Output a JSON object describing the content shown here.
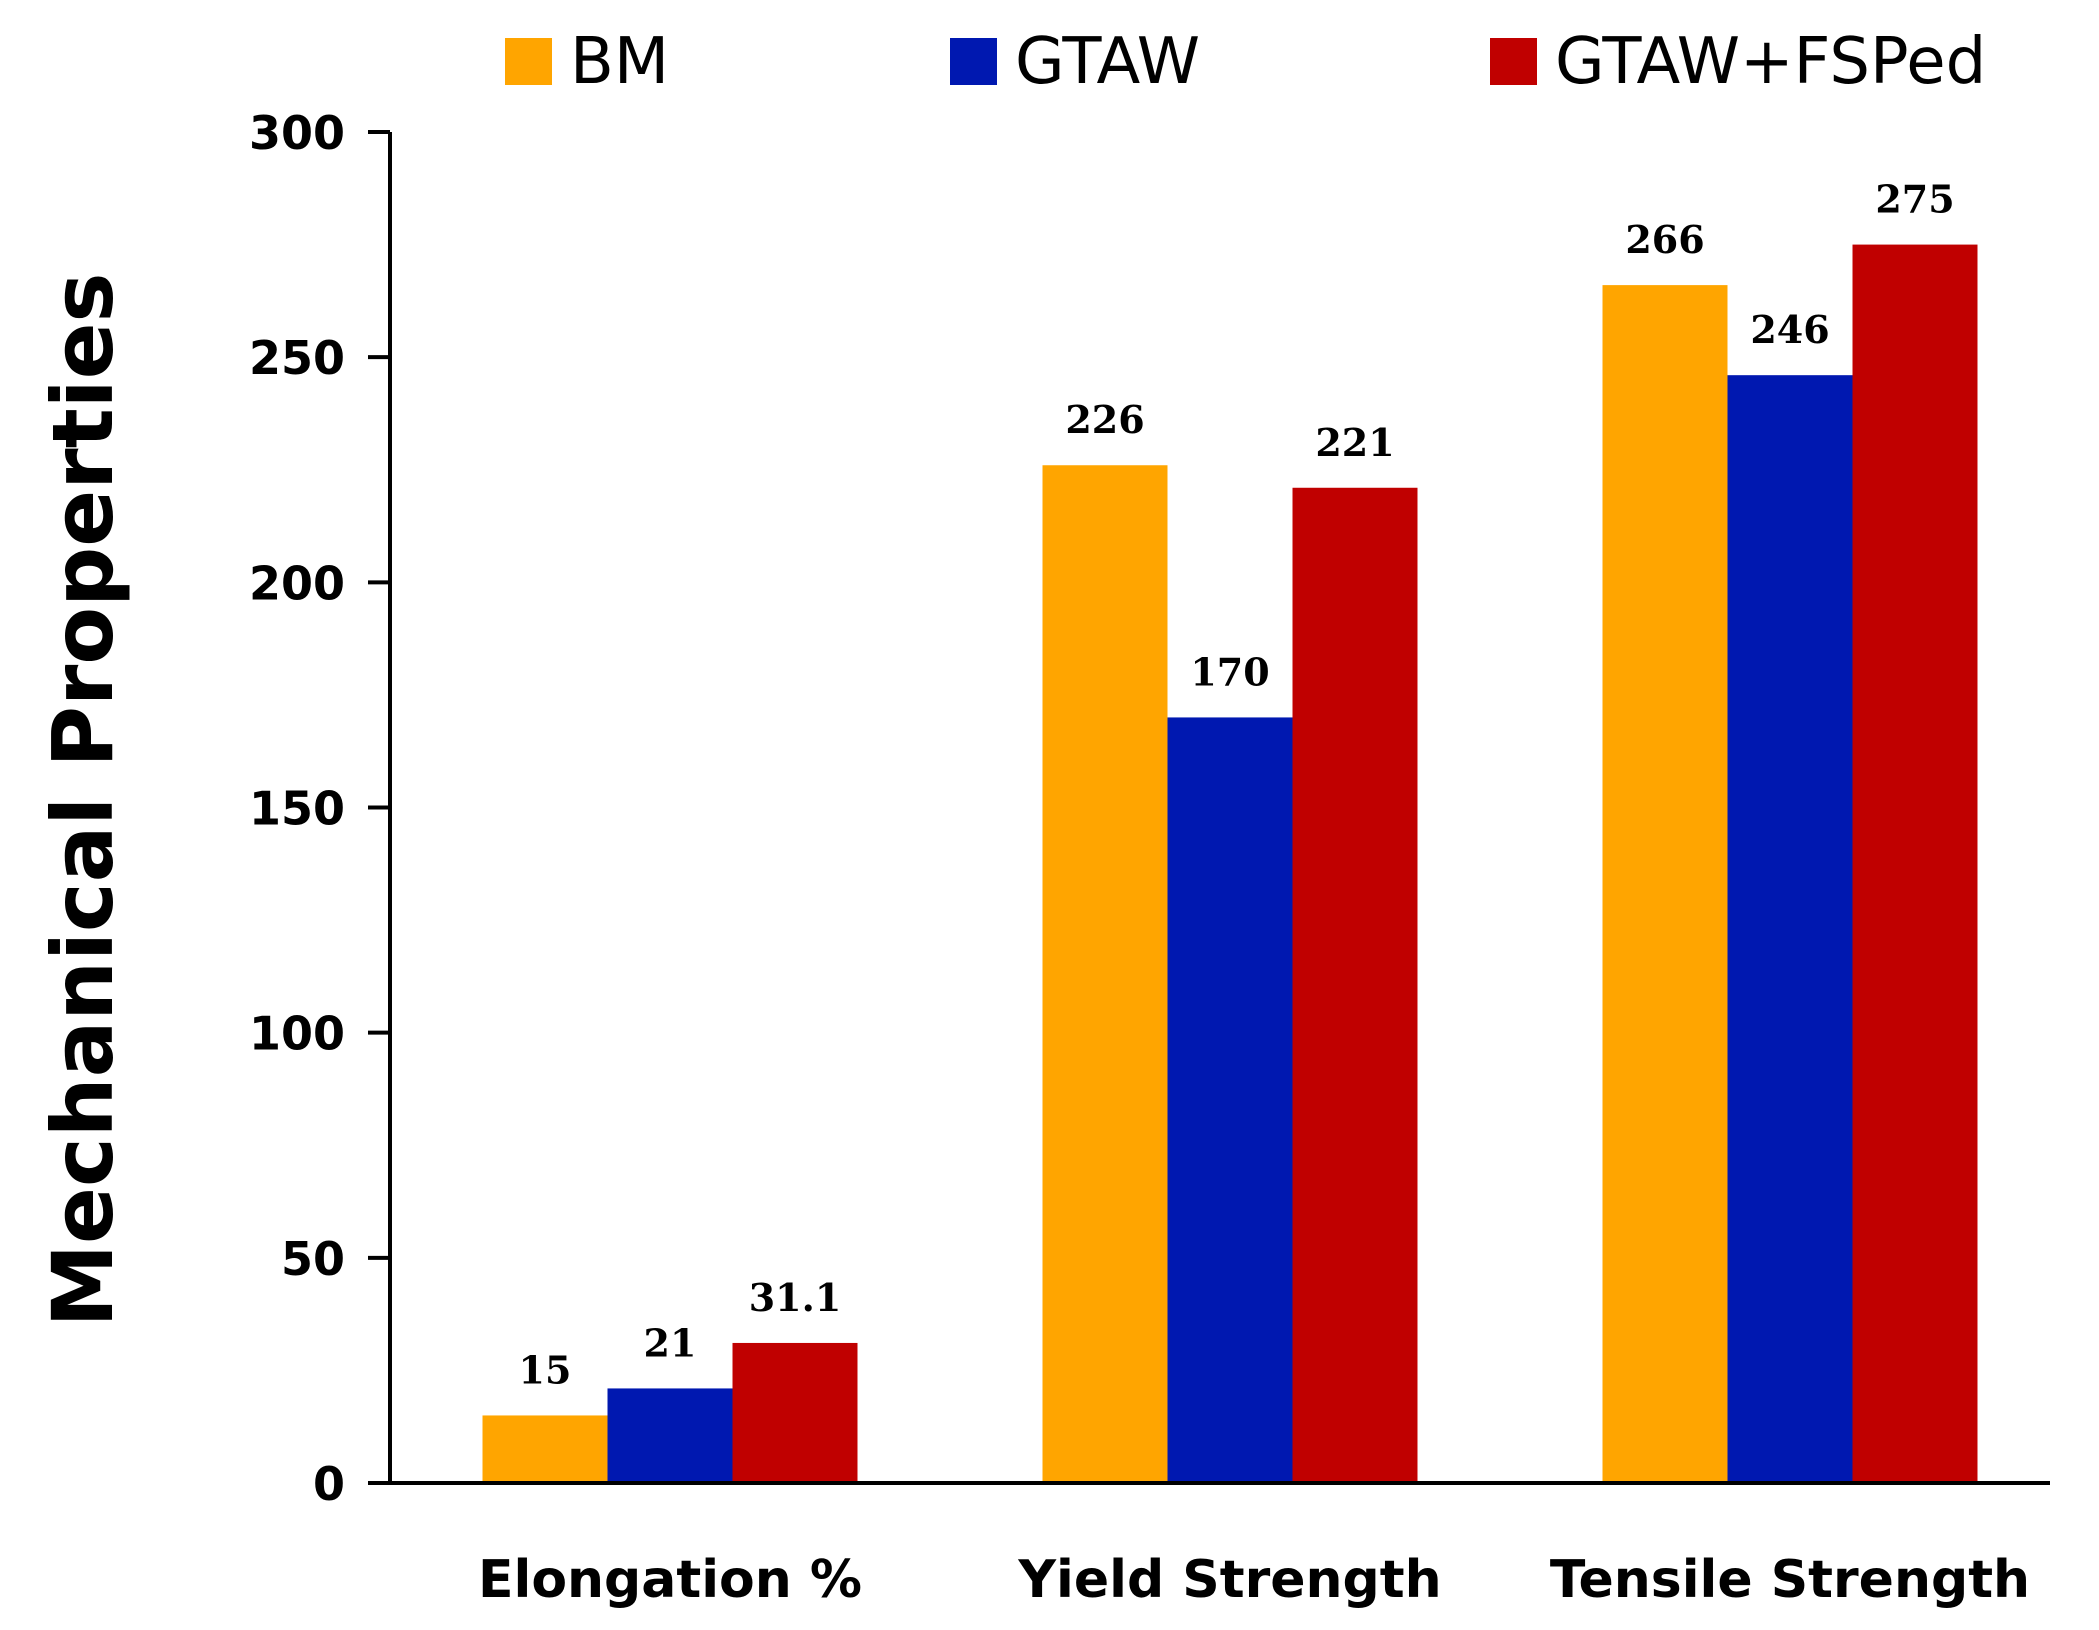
{
  "chart_data": {
    "type": "bar",
    "title": "",
    "xlabel": "",
    "ylabel": "Mechanical Properties",
    "categories": [
      "Elongation %",
      "Yield Strength",
      "Tensile Strength"
    ],
    "series": [
      {
        "name": "BM",
        "color": "#FFA500",
        "values": [
          15,
          226,
          266
        ],
        "labels": [
          "15",
          "226",
          "266"
        ]
      },
      {
        "name": "GTAW",
        "color": "#0018B0",
        "values": [
          21,
          170,
          246
        ],
        "labels": [
          "21",
          "170",
          "246"
        ]
      },
      {
        "name": "GTAW+FSPed",
        "color": "#C00000",
        "values": [
          31.1,
          221,
          275
        ],
        "labels": [
          "31.1",
          "221",
          "275"
        ]
      }
    ],
    "ylim": [
      0,
      300
    ],
    "yticks": [
      "0",
      "50",
      "100",
      "150",
      "200",
      "250",
      "300"
    ],
    "ytick_values": [
      0,
      50,
      100,
      150,
      200,
      250,
      300
    ],
    "grid": false,
    "legend_position": "top"
  }
}
